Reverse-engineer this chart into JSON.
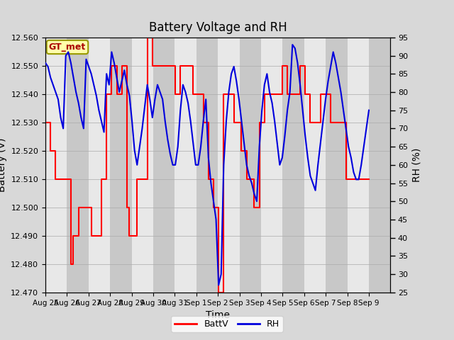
{
  "title": "Battery Voltage and RH",
  "xlabel": "Time",
  "ylabel_left": "Battery (V)",
  "ylabel_right": "RH (%)",
  "label_box": "GT_met",
  "ylim_left": [
    12.47,
    12.56
  ],
  "ylim_right": [
    25,
    95
  ],
  "yticks_left": [
    12.47,
    12.48,
    12.49,
    12.5,
    12.51,
    12.52,
    12.53,
    12.54,
    12.55,
    12.56
  ],
  "yticks_right": [
    25,
    30,
    35,
    40,
    45,
    50,
    55,
    60,
    65,
    70,
    75,
    80,
    85,
    90,
    95
  ],
  "xtick_labels": [
    "Aug 25",
    "Aug 26",
    "Aug 27",
    "Aug 28",
    "Aug 29",
    "Aug 30",
    "Aug 31",
    "Sep 1",
    "Sep 2",
    "Sep 3",
    "Sep 4",
    "Sep 5",
    "Sep 6",
    "Sep 7",
    "Sep 8",
    "Sep 9"
  ],
  "bg_color": "#d8d8d8",
  "plot_bg_strips": [
    "#e8e8e8",
    "#c8c8c8"
  ],
  "red_color": "#ff0000",
  "blue_color": "#0000dd",
  "legend_red": "BattV",
  "legend_blue": "RH",
  "title_fontsize": 12,
  "tick_fontsize": 8,
  "label_fontsize": 10,
  "batt_data": [
    12.53,
    12.53,
    12.52,
    12.52,
    12.51,
    12.51,
    12.51,
    12.51,
    12.51,
    12.51,
    12.48,
    12.49,
    12.49,
    12.5,
    12.5,
    12.5,
    12.5,
    12.5,
    12.49,
    12.49,
    12.49,
    12.49,
    12.51,
    12.51,
    12.54,
    12.54,
    12.55,
    12.55,
    12.54,
    12.54,
    12.55,
    12.55,
    12.5,
    12.49,
    12.49,
    12.49,
    12.51,
    12.51,
    12.51,
    12.51,
    12.56,
    12.56,
    12.55,
    12.55,
    12.55,
    12.55,
    12.55,
    12.55,
    12.55,
    12.55,
    12.55,
    12.54,
    12.54,
    12.55,
    12.55,
    12.55,
    12.55,
    12.55,
    12.54,
    12.54,
    12.54,
    12.54,
    12.53,
    12.53,
    12.51,
    12.51,
    12.5,
    12.5,
    12.47,
    12.47,
    12.54,
    12.54,
    12.54,
    12.54,
    12.53,
    12.53,
    12.53,
    12.52,
    12.52,
    12.51,
    12.51,
    12.51,
    12.5,
    12.5,
    12.53,
    12.53,
    12.54,
    12.54,
    12.54,
    12.54,
    12.54,
    12.54,
    12.54,
    12.55,
    12.55,
    12.54,
    12.54,
    12.54,
    12.54,
    12.54,
    12.55,
    12.55,
    12.54,
    12.54,
    12.53,
    12.53,
    12.53,
    12.53,
    12.54,
    12.54,
    12.54,
    12.54,
    12.53,
    12.53,
    12.53,
    12.53,
    12.53,
    12.53,
    12.51,
    12.51,
    12.51,
    12.51,
    12.51,
    12.51,
    12.51,
    12.51,
    12.51,
    12.51
  ],
  "rh_data": [
    88,
    87,
    84,
    82,
    80,
    78,
    73,
    70,
    90,
    91,
    88,
    84,
    80,
    77,
    73,
    70,
    89,
    87,
    85,
    82,
    79,
    75,
    72,
    69,
    85,
    82,
    91,
    88,
    84,
    80,
    83,
    86,
    82,
    79,
    72,
    64,
    60,
    65,
    70,
    76,
    82,
    78,
    73,
    78,
    82,
    80,
    78,
    72,
    67,
    63,
    60,
    60,
    65,
    75,
    82,
    80,
    77,
    72,
    66,
    60,
    60,
    65,
    72,
    78,
    62,
    55,
    50,
    45,
    27,
    30,
    60,
    72,
    80,
    85,
    87,
    83,
    78,
    72,
    66,
    60,
    57,
    55,
    52,
    50,
    65,
    75,
    82,
    85,
    80,
    77,
    72,
    66,
    60,
    62,
    68,
    75,
    80,
    93,
    92,
    88,
    82,
    75,
    68,
    62,
    57,
    55,
    53,
    60,
    66,
    72,
    78,
    83,
    87,
    91,
    88,
    84,
    80,
    75,
    70,
    65,
    62,
    58,
    56,
    56,
    60,
    65,
    70,
    75
  ]
}
